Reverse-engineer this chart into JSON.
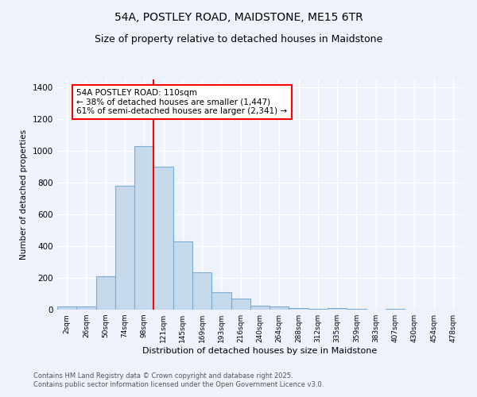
{
  "title1": "54A, POSTLEY ROAD, MAIDSTONE, ME15 6TR",
  "title2": "Size of property relative to detached houses in Maidstone",
  "xlabel": "Distribution of detached houses by size in Maidstone",
  "ylabel": "Number of detached properties",
  "categories": [
    "2sqm",
    "26sqm",
    "50sqm",
    "74sqm",
    "98sqm",
    "121sqm",
    "145sqm",
    "169sqm",
    "193sqm",
    "216sqm",
    "240sqm",
    "264sqm",
    "288sqm",
    "312sqm",
    "335sqm",
    "359sqm",
    "383sqm",
    "407sqm",
    "430sqm",
    "454sqm",
    "478sqm"
  ],
  "values": [
    20,
    22,
    210,
    780,
    1030,
    900,
    430,
    235,
    110,
    70,
    25,
    20,
    12,
    5,
    8,
    5,
    0,
    5,
    0,
    0,
    0
  ],
  "bar_color": "#c6d9ec",
  "bar_edgecolor": "#7aadd4",
  "vline_x": 4.5,
  "vline_color": "red",
  "annotation_line1": "54A POSTLEY ROAD: 110sqm",
  "annotation_line2": "← 38% of detached houses are smaller (1,447)",
  "annotation_line3": "61% of semi-detached houses are larger (2,341) →",
  "annotation_box_color": "white",
  "annotation_box_edgecolor": "red",
  "ylim": [
    0,
    1450
  ],
  "yticks": [
    0,
    200,
    400,
    600,
    800,
    1000,
    1200,
    1400
  ],
  "footnote1": "Contains HM Land Registry data © Crown copyright and database right 2025.",
  "footnote2": "Contains public sector information licensed under the Open Government Licence v3.0.",
  "background_color": "#eef2fb",
  "plot_bg_color": "#eef2fb",
  "grid_color": "white",
  "title_fontsize": 10,
  "subtitle_fontsize": 9
}
